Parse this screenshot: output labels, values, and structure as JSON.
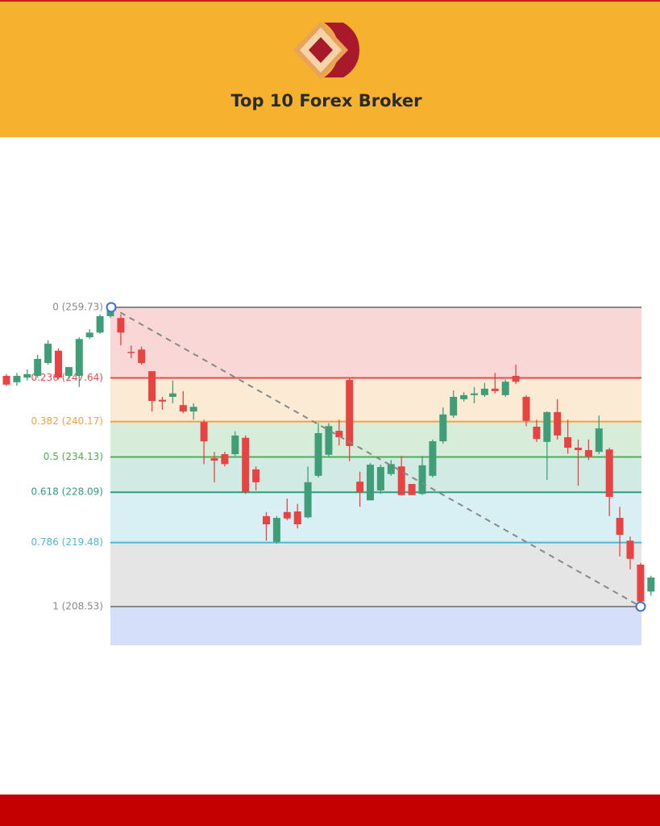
{
  "header": {
    "title": "Top 10 Forex Broker"
  },
  "chart_data": {
    "type": "candlestick",
    "ylim": [
      201.9,
      264.0
    ],
    "up_color": "#3f9e78",
    "down_color": "#e84343",
    "extension_color": "#5b7fe8",
    "levels": [
      {
        "ratio": 0,
        "value": 259.73,
        "label": "0 (259.73)",
        "color": "#888888"
      },
      {
        "ratio": 0.236,
        "value": 247.64,
        "label": "0.236 (247.64)",
        "color": "#e84a4a"
      },
      {
        "ratio": 0.382,
        "value": 240.17,
        "label": "0.382 (240.17)",
        "color": "#f2a33a"
      },
      {
        "ratio": 0.5,
        "value": 234.13,
        "label": "0.5 (234.13)",
        "color": "#4caf50"
      },
      {
        "ratio": 0.618,
        "value": 228.09,
        "label": "0.618 (228.09)",
        "color": "#2e9e7e"
      },
      {
        "ratio": 0.786,
        "value": 219.48,
        "label": "0.786 (219.48)",
        "color": "#4fb8cf"
      },
      {
        "ratio": 1,
        "value": 208.53,
        "label": "1 (208.53)",
        "color": "#888888"
      }
    ],
    "open": [
      248.0,
      246.9,
      247.7,
      248.0,
      250.2,
      252.3,
      248.0,
      248.0,
      254.6,
      255.4,
      258.2,
      257.9,
      252.1,
      252.5,
      248.8,
      243.9,
      244.4,
      243.0,
      241.9,
      240.1,
      233.9,
      234.6,
      234.6,
      237.4,
      232.0,
      224.0,
      219.6,
      224.7,
      224.8,
      223.8,
      230.9,
      234.5,
      238.6,
      247.3,
      229.9,
      226.7,
      228.4,
      231.2,
      232.5,
      229.5,
      227.8,
      230.9,
      236.8,
      241.2,
      244.0,
      244.7,
      244.7,
      245.8,
      244.7,
      248.0,
      244.4,
      239.3,
      236.7,
      241.8,
      237.5,
      235.7,
      235.3,
      235.0,
      235.4,
      223.7,
      219.8,
      215.7,
      211.1
    ],
    "high": [
      248.3,
      248.5,
      249.1,
      251.6,
      254.1,
      252.7,
      249.5,
      254.6,
      256.0,
      258.5,
      259.7,
      258.5,
      253.2,
      253.0,
      248.8,
      244.4,
      247.2,
      245.4,
      243.3,
      240.5,
      235.0,
      235.0,
      238.5,
      237.8,
      232.5,
      224.7,
      224.0,
      227.0,
      226.1,
      232.5,
      239.9,
      239.9,
      240.5,
      247.6,
      231.6,
      233.1,
      232.8,
      233.6,
      234.3,
      229.5,
      234.3,
      237.1,
      242.6,
      245.5,
      245.2,
      246.1,
      246.8,
      248.5,
      247.4,
      249.9,
      244.7,
      240.5,
      241.9,
      244.0,
      240.5,
      237.1,
      237.1,
      241.2,
      235.7,
      225.6,
      220.5,
      216.0,
      213.8
    ],
    "low": [
      246.3,
      246.3,
      247.2,
      247.7,
      249.9,
      247.4,
      247.4,
      246.1,
      254.3,
      255.2,
      257.9,
      253.2,
      251.0,
      249.9,
      241.9,
      242.2,
      243.3,
      241.6,
      240.5,
      232.9,
      229.8,
      232.5,
      234.3,
      227.8,
      228.4,
      219.8,
      219.3,
      223.3,
      221.9,
      223.6,
      230.6,
      234.2,
      236.1,
      233.4,
      225.6,
      226.7,
      227.8,
      230.9,
      227.6,
      227.6,
      227.6,
      230.6,
      236.4,
      240.8,
      243.6,
      243.3,
      244.4,
      245.0,
      244.4,
      246.6,
      239.4,
      236.7,
      230.2,
      237.1,
      234.7,
      229.2,
      233.6,
      234.6,
      224.0,
      217.1,
      214.9,
      208.5,
      210.4
    ],
    "close": [
      246.5,
      248.0,
      248.3,
      250.9,
      253.5,
      247.7,
      249.5,
      254.3,
      255.4,
      258.2,
      259.3,
      255.4,
      251.9,
      250.2,
      243.7,
      243.6,
      245.0,
      241.9,
      242.7,
      236.8,
      233.5,
      232.9,
      237.8,
      228.1,
      229.8,
      222.6,
      223.7,
      223.6,
      222.6,
      229.8,
      238.2,
      239.4,
      237.5,
      236.0,
      228.1,
      232.8,
      232.4,
      232.9,
      227.6,
      227.6,
      232.7,
      236.8,
      241.4,
      244.4,
      244.7,
      245.0,
      245.8,
      245.4,
      247.0,
      247.0,
      240.3,
      237.2,
      241.8,
      237.8,
      235.7,
      235.3,
      234.2,
      239.0,
      227.3,
      220.8,
      216.7,
      209.4,
      213.5
    ]
  }
}
